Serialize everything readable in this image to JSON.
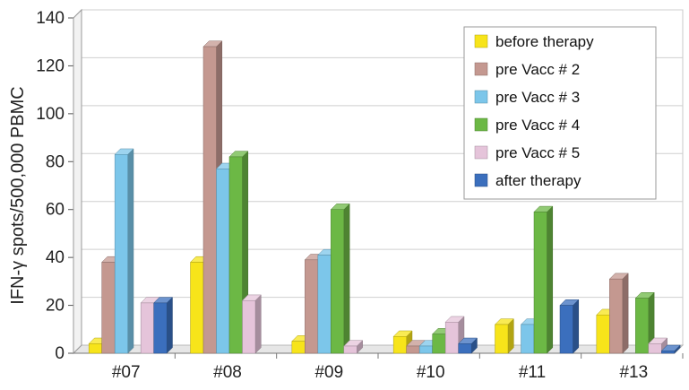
{
  "chart_data": {
    "type": "bar",
    "style": "3d-clustered",
    "title": "",
    "xlabel": "",
    "ylabel": "IFN-γ spots/500,000 PBMC",
    "ylim": [
      0,
      140
    ],
    "yticks": [
      0,
      20,
      40,
      60,
      80,
      100,
      120,
      140
    ],
    "grid": true,
    "legend_position": "top-right",
    "categories": [
      "#07",
      "#08",
      "#09",
      "#10",
      "#11",
      "#13"
    ],
    "series": [
      {
        "name": "before therapy",
        "color": "#F7E41A",
        "values": [
          4,
          38,
          5,
          7,
          12,
          16
        ]
      },
      {
        "name": "pre Vacc # 2",
        "color": "#C49890",
        "values": [
          38,
          128,
          39,
          3,
          0,
          31
        ]
      },
      {
        "name": "pre Vacc # 3",
        "color": "#7CC6EA",
        "values": [
          83,
          77,
          41,
          3,
          12,
          0
        ]
      },
      {
        "name": "pre Vacc # 4",
        "color": "#6CB845",
        "values": [
          0,
          82,
          60,
          8,
          59,
          23
        ]
      },
      {
        "name": "pre Vacc # 5",
        "color": "#E5C4DA",
        "values": [
          21,
          22,
          3,
          13,
          0,
          4
        ]
      },
      {
        "name": "after therapy",
        "color": "#3B6FBD",
        "values": [
          21,
          0,
          0,
          4,
          20,
          1
        ]
      }
    ]
  }
}
